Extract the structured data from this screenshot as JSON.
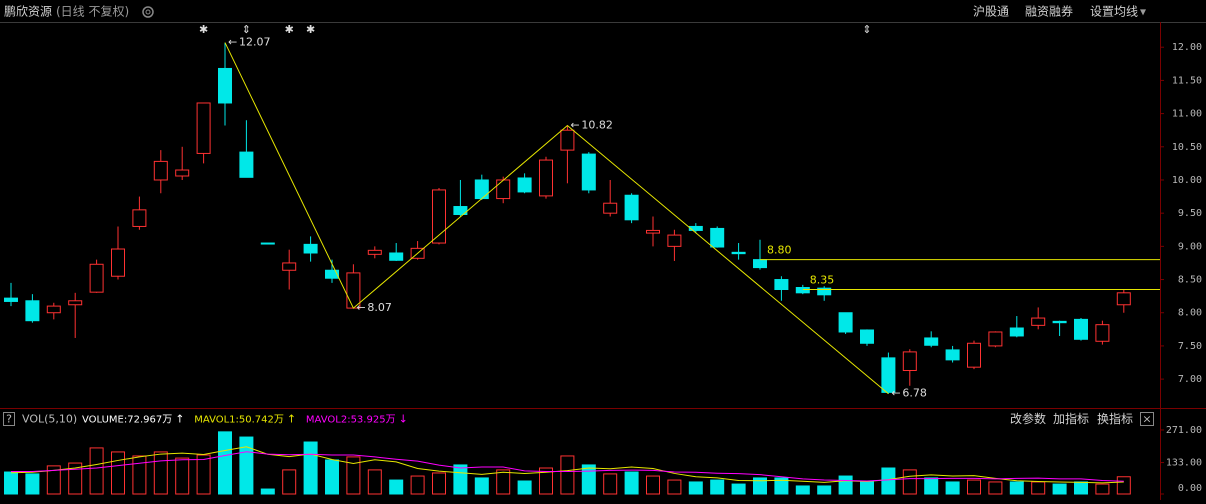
{
  "header": {
    "title": "鹏欣资源",
    "mode": "(日线 不复权)",
    "links": [
      "沪股通",
      "融资融券",
      "设置均线"
    ],
    "dropdown": "▾"
  },
  "panel": {
    "help": "?",
    "buttons": [
      "改参数",
      "加指标",
      "换指标"
    ],
    "close": "×"
  },
  "chart_data": [
    {
      "type": "candlestick",
      "open": [
        8.22,
        8.18,
        8.0,
        8.12,
        8.31,
        8.55,
        9.3,
        10.0,
        10.06,
        10.4,
        11.68,
        10.42,
        9.05,
        8.64,
        9.03,
        8.64,
        8.07,
        8.88,
        8.9,
        8.82,
        9.05,
        9.6,
        10.0,
        9.72,
        10.03,
        9.76,
        10.45,
        10.39,
        9.5,
        9.77,
        9.2,
        9.0,
        9.3,
        9.27,
        8.91,
        8.8,
        8.5,
        8.38,
        8.37,
        8.0,
        7.74,
        7.32,
        7.13,
        7.62,
        7.44,
        7.18,
        7.5,
        7.77,
        7.81,
        7.87,
        7.9,
        7.57,
        8.12
      ],
      "high": [
        8.45,
        8.28,
        8.15,
        8.3,
        8.8,
        9.3,
        9.75,
        10.45,
        10.5,
        11.16,
        12.07,
        10.9,
        9.05,
        8.95,
        9.15,
        8.8,
        8.73,
        9.0,
        9.05,
        9.08,
        9.88,
        10.0,
        10.08,
        10.05,
        10.1,
        10.35,
        10.82,
        10.42,
        10.0,
        9.8,
        9.45,
        9.25,
        9.35,
        9.3,
        9.05,
        9.1,
        8.55,
        8.42,
        8.4,
        8.0,
        7.75,
        7.4,
        7.45,
        7.72,
        7.5,
        7.58,
        7.72,
        7.95,
        8.08,
        7.88,
        7.92,
        7.88,
        8.35
      ],
      "low": [
        8.1,
        7.85,
        7.9,
        7.62,
        8.3,
        8.5,
        9.25,
        9.8,
        10.0,
        10.25,
        10.82,
        10.04,
        9.04,
        8.35,
        8.77,
        8.45,
        8.07,
        8.82,
        8.78,
        8.8,
        9.03,
        9.45,
        9.7,
        9.65,
        9.8,
        9.72,
        9.95,
        9.8,
        9.45,
        9.35,
        9.0,
        8.78,
        9.2,
        8.98,
        8.8,
        8.65,
        8.18,
        8.28,
        8.18,
        7.68,
        7.5,
        6.78,
        6.9,
        7.48,
        7.25,
        7.15,
        7.48,
        7.63,
        7.75,
        7.65,
        7.58,
        7.52,
        8.0
      ],
      "close": [
        8.17,
        7.88,
        8.1,
        8.18,
        8.73,
        8.96,
        9.55,
        10.28,
        10.15,
        11.16,
        11.16,
        10.04,
        9.04,
        8.75,
        8.9,
        8.52,
        8.6,
        8.94,
        8.79,
        8.97,
        9.85,
        9.48,
        9.72,
        10.0,
        9.82,
        10.3,
        10.75,
        9.85,
        9.65,
        9.4,
        9.24,
        9.17,
        9.24,
        8.99,
        8.89,
        8.68,
        8.35,
        8.3,
        8.27,
        7.71,
        7.54,
        6.8,
        7.41,
        7.51,
        7.29,
        7.54,
        7.71,
        7.65,
        7.92,
        7.85,
        7.6,
        7.82,
        8.3
      ],
      "up_color": "#ff3232",
      "down_color": "#00e8e8",
      "ylim": [
        6.61,
        12.38
      ],
      "yticks": [
        {
          "value": 7,
          "label": "7.00"
        },
        {
          "value": 7.5,
          "label": "7.50"
        },
        {
          "value": 8,
          "label": "8.00"
        },
        {
          "value": 8.5,
          "label": "8.50"
        },
        {
          "value": 9,
          "label": "9.00"
        },
        {
          "value": 9.5,
          "label": "9.50"
        },
        {
          "value": 10,
          "label": "10.00"
        },
        {
          "value": 10.5,
          "label": "10.50"
        },
        {
          "value": 11,
          "label": "11.00"
        },
        {
          "value": 11.5,
          "label": "11.50"
        },
        {
          "value": 12,
          "label": "12.00"
        }
      ],
      "zigzag": {
        "color": "#e6e600",
        "pointer": "←",
        "x": [
          10,
          16,
          26,
          41
        ],
        "values": [
          12.07,
          8.07,
          10.82,
          6.78
        ]
      },
      "levels": {
        "color": "#e6e600",
        "x": [
          35,
          37
        ],
        "values": [
          8.8,
          8.35
        ],
        "value_labels": [
          "8.80",
          "8.35"
        ]
      },
      "markers": {
        "x": [
          9,
          11,
          13,
          14,
          40
        ],
        "labels": [
          "✱",
          "⇕",
          "✱",
          "✱",
          "⇕"
        ]
      }
    },
    {
      "type": "bar",
      "title": "VOL(5,10)",
      "ylim": [
        0,
        292
      ],
      "yticks": [
        {
          "value": 0,
          "label": "0.00"
        },
        {
          "value": 133,
          "label": "133.00"
        },
        {
          "value": 271,
          "label": "271.00"
        }
      ],
      "series": [
        {
          "name": "VOLUME:72.967万",
          "trend": "↑",
          "type": "bar",
          "color": "#ffffff",
          "values": [
            93,
            85,
            119,
            131,
            195,
            178,
            161,
            178,
            152,
            165,
            263,
            241,
            21,
            102,
            220,
            144,
            157,
            102,
            59,
            76,
            89,
            123,
            68,
            102,
            55,
            110,
            161,
            123,
            85,
            93,
            76,
            59,
            51,
            59,
            42,
            68,
            68,
            34,
            34,
            76,
            51,
            110,
            102,
            68,
            51,
            59,
            51,
            51,
            51,
            42,
            51,
            42,
            72.967
          ]
        },
        {
          "name": "MAVOL1:50.742万",
          "trend": "↑",
          "type": "line",
          "color": "#e6e600",
          "values": [
            90,
            92,
            100,
            110,
            125,
            142,
            157,
            169,
            173,
            167,
            184,
            200,
            168,
            158,
            169,
            146,
            129,
            145,
            136,
            108,
            97,
            90,
            83,
            92,
            87,
            92,
            99,
            110,
            107,
            114,
            108,
            87,
            73,
            68,
            57,
            56,
            58,
            54,
            49,
            56,
            53,
            61,
            75,
            81,
            76,
            78,
            66,
            56,
            53,
            51,
            49,
            47,
            50.742
          ]
        },
        {
          "name": "MAVOL2:53.925万",
          "trend": "↓",
          "type": "line",
          "color": "#ff00ff",
          "values": [
            95,
            95,
            100,
            105,
            110,
            120,
            130,
            140,
            145,
            146,
            163,
            179,
            169,
            166,
            168,
            165,
            165,
            157,
            147,
            139,
            122,
            110,
            114,
            114,
            98,
            95,
            95,
            97,
            100,
            101,
            100,
            93,
            92,
            88,
            86,
            82,
            73,
            64,
            59,
            57,
            55,
            60,
            65,
            65,
            66,
            66,
            64,
            66,
            67,
            64,
            64,
            57,
            53.925
          ]
        }
      ]
    }
  ]
}
